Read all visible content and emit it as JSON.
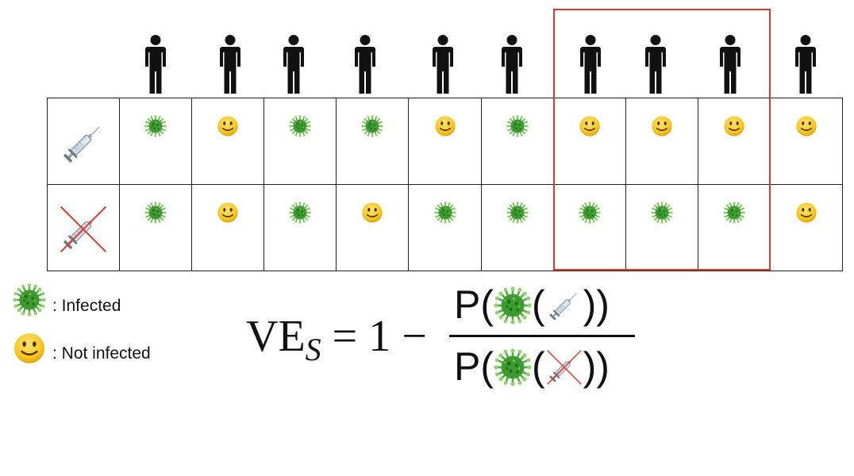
{
  "people_count": 10,
  "highlight": {
    "color": "#e0392b",
    "columns": [
      7,
      8,
      9
    ]
  },
  "rows": [
    {
      "name": "vaccinated",
      "header_icon": "syringe-icon",
      "cells": [
        "virus",
        "smile",
        "virus",
        "virus",
        "smile",
        "virus",
        "smile",
        "smile",
        "smile",
        "smile"
      ]
    },
    {
      "name": "unvaccinated",
      "header_icon": "crossed-syringe-icon",
      "cells": [
        "virus",
        "smile",
        "virus",
        "smile",
        "virus",
        "virus",
        "virus",
        "virus",
        "virus",
        "smile"
      ]
    }
  ],
  "legend": {
    "infected_label": ": Infected",
    "not_infected_label": ": Not infected"
  },
  "formula": {
    "lhs_main": "VE",
    "lhs_sub": "S",
    "lhs_rest": " = 1 − ",
    "p_open": "P(",
    "paren_open": "(",
    "paren_close": "))"
  },
  "colors": {
    "virus": "#3d9a2e",
    "smile_face": "#f5c518",
    "cross": "#e0392b"
  }
}
